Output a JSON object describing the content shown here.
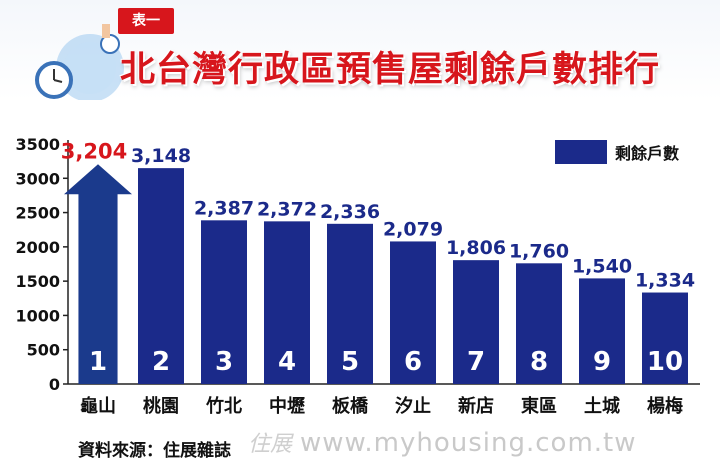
{
  "header": {
    "tag": "表一",
    "title": "北台灣行政區預售屋剩餘戶數排行"
  },
  "legend": {
    "label": "剩餘戶數"
  },
  "footer": {
    "source": "資料來源：住展雜誌",
    "watermark": "www.myhousing.com.tw",
    "watermark_logo": "住展"
  },
  "colors": {
    "bar": "#1b2a8a",
    "title": "#d7161c",
    "arrow": "#1b3a8c"
  },
  "chart_data": {
    "type": "bar",
    "title": "北台灣行政區預售屋剩餘戶數排行",
    "xlabel": "",
    "ylabel": "",
    "ylim": [
      0,
      3500
    ],
    "yticks": [
      0,
      500,
      1000,
      1500,
      2000,
      2500,
      3000,
      3500
    ],
    "grid": false,
    "legend_position": "top-right",
    "categories": [
      "龜山",
      "桃園",
      "竹北",
      "中壢",
      "板橋",
      "汐止",
      "新店",
      "東區",
      "土城",
      "楊梅"
    ],
    "ranks": [
      "1",
      "2",
      "3",
      "4",
      "5",
      "6",
      "7",
      "8",
      "9",
      "10"
    ],
    "series": [
      {
        "name": "剩餘戶數",
        "values": [
          3204,
          3148,
          2387,
          2372,
          2336,
          2079,
          1806,
          1760,
          1540,
          1334
        ],
        "labels": [
          "3,204",
          "3,148",
          "2,387",
          "2,372",
          "2,336",
          "2,079",
          "1,806",
          "1,760",
          "1,540",
          "1,334"
        ]
      }
    ]
  }
}
